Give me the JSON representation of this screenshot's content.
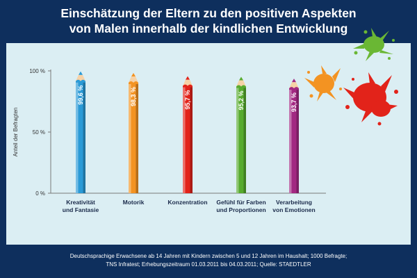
{
  "header": {
    "title_line1": "Einschätzung der Eltern zu den positiven Aspekten",
    "title_line2": "von Malen innerhalb der kindlichen Entwicklung"
  },
  "footer": {
    "line1": "Deutschsprachige Erwachsene ab 14 Jahren mit Kindern zwischen 5 und 12 Jahren im Haushalt; 1000 Befragte;",
    "line2": "TNS Infratest; Erhebungszeitraum 01.03.2011 bis 04.03.2011; Quelle: STAEDTLER"
  },
  "colors": {
    "background": "#0e2f5d",
    "panel": "#dbeef3",
    "splat_green": "#6ab734",
    "splat_orange": "#f39322",
    "splat_red": "#e2231a"
  },
  "chart_data": {
    "type": "bar",
    "ylabel": "Anteil der Befragten",
    "ylim": [
      0,
      100
    ],
    "yticks": [
      "0 %",
      "50 %",
      "100 %"
    ],
    "categories": [
      [
        "Kreativität",
        "und Fantasie"
      ],
      [
        "Motorik"
      ],
      [
        "Konzentration"
      ],
      [
        "Gefühl für Farben",
        "und Proportionen"
      ],
      [
        "Verarbeitung",
        "von Emotionen"
      ]
    ],
    "values": [
      99.6,
      98.3,
      95.7,
      95.2,
      93.7
    ],
    "value_labels": [
      "99,6 %",
      "98,3 %",
      "95,7 %",
      "95,2 %",
      "93,7 %"
    ],
    "bar_colors": [
      "#2a9ad6",
      "#f39322",
      "#e2231a",
      "#57ab2e",
      "#a22882"
    ],
    "grid": false
  }
}
